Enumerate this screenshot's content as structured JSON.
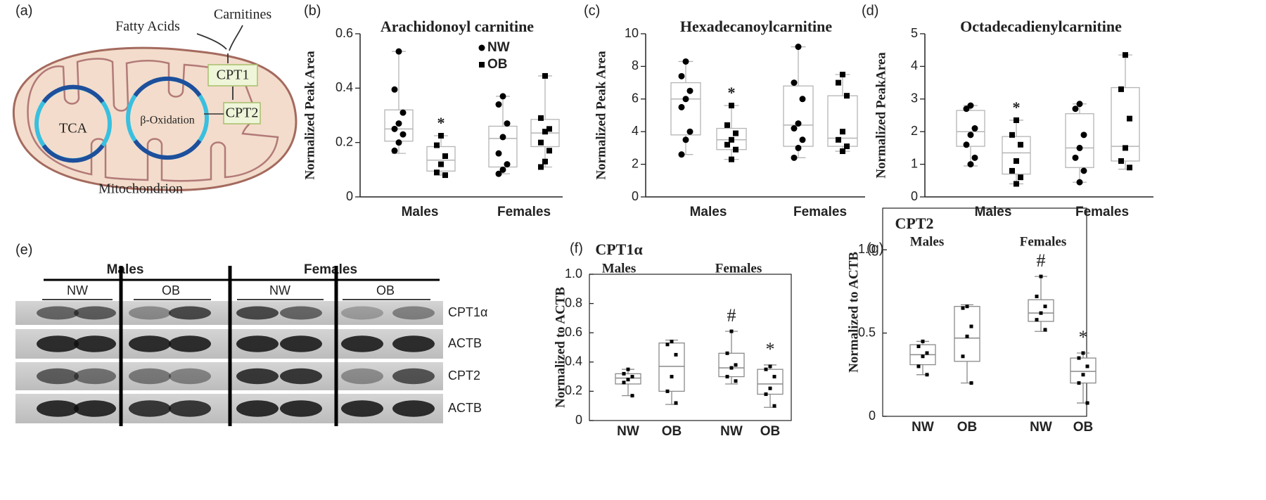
{
  "diagram": {
    "panel_label": "(a)",
    "inputs": [
      "Fatty Acids",
      "Carnitines"
    ],
    "enzymes": [
      "CPT1",
      "CPT2"
    ],
    "cycles": [
      "TCA",
      "β-Oxidation"
    ],
    "organelle": "Mitochondrion"
  },
  "blot": {
    "panel_label": "(e)",
    "groups": [
      {
        "name": "Males",
        "subgroups": [
          "NW",
          "OB"
        ]
      },
      {
        "name": "Females",
        "subgroups": [
          "NW",
          "OB"
        ]
      }
    ],
    "rows": [
      "CPT1α",
      "ACTB",
      "CPT2",
      "ACTB"
    ]
  },
  "chart_data": [
    {
      "type": "box",
      "panel_label": "(b)",
      "title": "Arachidonoyl carnitine",
      "y_label": "Normalized Peak Area",
      "categories": [
        "Males",
        "Females"
      ],
      "ylim": [
        0,
        0.6
      ],
      "yticks": [
        0,
        0.2,
        0.4,
        0.6
      ],
      "legend": true,
      "box_color": "#b5b5b5",
      "point_color": "#000000",
      "series": [
        {
          "name": "NW",
          "marker": "circle",
          "boxes": [
            {
              "min": 0.16,
              "q1": 0.205,
              "median": 0.25,
              "q3": 0.32,
              "max": 0.535,
              "points": [
                0.535,
                0.395,
                0.31,
                0.27,
                0.25,
                0.23,
                0.2,
                0.17
              ]
            },
            {
              "min": 0.085,
              "q1": 0.11,
              "median": 0.215,
              "q3": 0.26,
              "max": 0.37,
              "points": [
                0.37,
                0.34,
                0.27,
                0.22,
                0.16,
                0.12,
                0.1,
                0.085
              ]
            }
          ]
        },
        {
          "name": "OB",
          "marker": "square",
          "boxes": [
            {
              "min": 0.08,
              "q1": 0.095,
              "median": 0.135,
              "q3": 0.185,
              "max": 0.225,
              "points": [
                0.225,
                0.19,
                0.15,
                0.12,
                0.09,
                0.08
              ]
            },
            {
              "min": 0.11,
              "q1": 0.185,
              "median": 0.235,
              "q3": 0.285,
              "max": 0.445,
              "points": [
                0.445,
                0.29,
                0.25,
                0.24,
                0.2,
                0.17,
                0.13,
                0.11
              ]
            }
          ]
        }
      ],
      "annotations": [
        {
          "text": "*",
          "category": 0,
          "series": 1
        }
      ]
    },
    {
      "type": "box",
      "panel_label": "(c)",
      "title": "Hexadecanoylcarnitine",
      "y_label": "Normalized Peak Area",
      "categories": [
        "Males",
        "Females"
      ],
      "ylim": [
        0,
        10
      ],
      "yticks": [
        0,
        2,
        4,
        6,
        8,
        10
      ],
      "legend": false,
      "box_color": "#b5b5b5",
      "point_color": "#000000",
      "series": [
        {
          "name": "NW",
          "marker": "circle",
          "boxes": [
            {
              "min": 2.6,
              "q1": 3.8,
              "median": 6.0,
              "q3": 7.0,
              "max": 8.3,
              "points": [
                8.3,
                7.4,
                6.5,
                6.0,
                5.5,
                4.0,
                3.5,
                2.6
              ]
            },
            {
              "min": 2.4,
              "q1": 3.1,
              "median": 4.4,
              "q3": 6.8,
              "max": 9.2,
              "points": [
                9.2,
                7.0,
                6.0,
                4.5,
                4.2,
                3.5,
                3.0,
                2.4
              ]
            }
          ]
        },
        {
          "name": "OB",
          "marker": "square",
          "boxes": [
            {
              "min": 2.3,
              "q1": 2.9,
              "median": 3.5,
              "q3": 4.2,
              "max": 5.6,
              "points": [
                5.6,
                4.4,
                3.9,
                3.5,
                3.2,
                2.9,
                2.3
              ]
            },
            {
              "min": 2.8,
              "q1": 3.1,
              "median": 3.6,
              "q3": 6.2,
              "max": 7.5,
              "points": [
                7.5,
                7.0,
                6.2,
                4.0,
                3.5,
                3.1,
                2.8
              ]
            }
          ]
        }
      ],
      "annotations": [
        {
          "text": "*",
          "category": 0,
          "series": 1
        }
      ]
    },
    {
      "type": "box",
      "panel_label": "(d)",
      "title": "Octadecadienylcarnitine",
      "y_label": "Normalized PeakArea",
      "categories": [
        "Males",
        "Females"
      ],
      "ylim": [
        0,
        5
      ],
      "yticks": [
        0,
        1,
        2,
        3,
        4,
        5
      ],
      "legend": false,
      "box_color": "#b5b5b5",
      "point_color": "#000000",
      "series": [
        {
          "name": "NW",
          "marker": "circle",
          "boxes": [
            {
              "min": 0.95,
              "q1": 1.55,
              "median": 2.0,
              "q3": 2.65,
              "max": 2.8,
              "points": [
                2.8,
                2.7,
                2.1,
                1.9,
                1.6,
                1.2,
                1.0
              ]
            },
            {
              "min": 0.45,
              "q1": 0.9,
              "median": 1.5,
              "q3": 2.55,
              "max": 2.85,
              "points": [
                2.85,
                2.7,
                1.9,
                1.5,
                1.2,
                0.8,
                0.45
              ]
            }
          ]
        },
        {
          "name": "OB",
          "marker": "square",
          "boxes": [
            {
              "min": 0.4,
              "q1": 0.7,
              "median": 1.35,
              "q3": 1.85,
              "max": 2.35,
              "points": [
                2.35,
                1.9,
                1.6,
                1.1,
                0.8,
                0.6,
                0.4
              ]
            },
            {
              "min": 0.85,
              "q1": 1.1,
              "median": 1.55,
              "q3": 3.35,
              "max": 4.35,
              "points": [
                4.35,
                3.3,
                2.4,
                1.5,
                1.1,
                0.9
              ]
            }
          ]
        }
      ],
      "annotations": [
        {
          "text": "*",
          "category": 0,
          "series": 1
        }
      ]
    },
    {
      "type": "grouped_box",
      "panel_label": "(f)",
      "title": "CPT1α",
      "y_label": "Normalized to ACTB",
      "groups": [
        "Males",
        "Females"
      ],
      "categories": [
        "NW",
        "OB",
        "NW",
        "OB"
      ],
      "ylim": [
        0,
        1
      ],
      "yticks": [
        0,
        0.2,
        0.4,
        0.6,
        0.8,
        {
          "value": 1,
          "label": "1.0"
        }
      ],
      "box_color": "#8a8a8a",
      "point_color": "#000000",
      "boxes": [
        {
          "min": 0.17,
          "q1": 0.25,
          "median": 0.29,
          "q3": 0.32,
          "max": 0.35,
          "points": [
            0.35,
            0.32,
            0.3,
            0.28,
            0.26,
            0.17
          ]
        },
        {
          "min": 0.11,
          "q1": 0.2,
          "median": 0.37,
          "q3": 0.53,
          "max": 0.55,
          "points": [
            0.54,
            0.52,
            0.45,
            0.3,
            0.2,
            0.12
          ]
        },
        {
          "min": 0.25,
          "q1": 0.3,
          "median": 0.36,
          "q3": 0.46,
          "max": 0.61,
          "points": [
            0.61,
            0.46,
            0.38,
            0.36,
            0.3,
            0.27
          ]
        },
        {
          "min": 0.09,
          "q1": 0.18,
          "median": 0.25,
          "q3": 0.35,
          "max": 0.38,
          "points": [
            0.37,
            0.35,
            0.3,
            0.22,
            0.18,
            0.1
          ]
        }
      ],
      "annotations": [
        {
          "text": "#",
          "category": 2
        },
        {
          "text": "*",
          "category": 3
        }
      ]
    },
    {
      "type": "grouped_box",
      "panel_label": "(g)",
      "title": "CPT2",
      "y_label": "Normalized to ACTB",
      "groups": [
        "Males",
        "Females"
      ],
      "categories": [
        "NW",
        "OB",
        "NW",
        "OB"
      ],
      "ylim": [
        0,
        1.25
      ],
      "yticks": [
        0,
        0.5,
        {
          "value": 1,
          "label": "1.0"
        }
      ],
      "box_color": "#8a8a8a",
      "point_color": "#000000",
      "boxes": [
        {
          "min": 0.25,
          "q1": 0.31,
          "median": 0.37,
          "q3": 0.43,
          "max": 0.45,
          "points": [
            0.45,
            0.42,
            0.38,
            0.36,
            0.3,
            0.25
          ]
        },
        {
          "min": 0.2,
          "q1": 0.33,
          "median": 0.47,
          "q3": 0.66,
          "max": 0.67,
          "points": [
            0.66,
            0.65,
            0.54,
            0.48,
            0.36,
            0.2
          ]
        },
        {
          "min": 0.51,
          "q1": 0.57,
          "median": 0.62,
          "q3": 0.7,
          "max": 0.84,
          "points": [
            0.84,
            0.72,
            0.66,
            0.62,
            0.58,
            0.52
          ]
        },
        {
          "min": 0.08,
          "q1": 0.2,
          "median": 0.27,
          "q3": 0.35,
          "max": 0.38,
          "points": [
            0.38,
            0.35,
            0.3,
            0.25,
            0.2,
            0.08
          ]
        }
      ],
      "annotations": [
        {
          "text": "#",
          "category": 2
        },
        {
          "text": "*",
          "category": 3
        }
      ]
    }
  ]
}
